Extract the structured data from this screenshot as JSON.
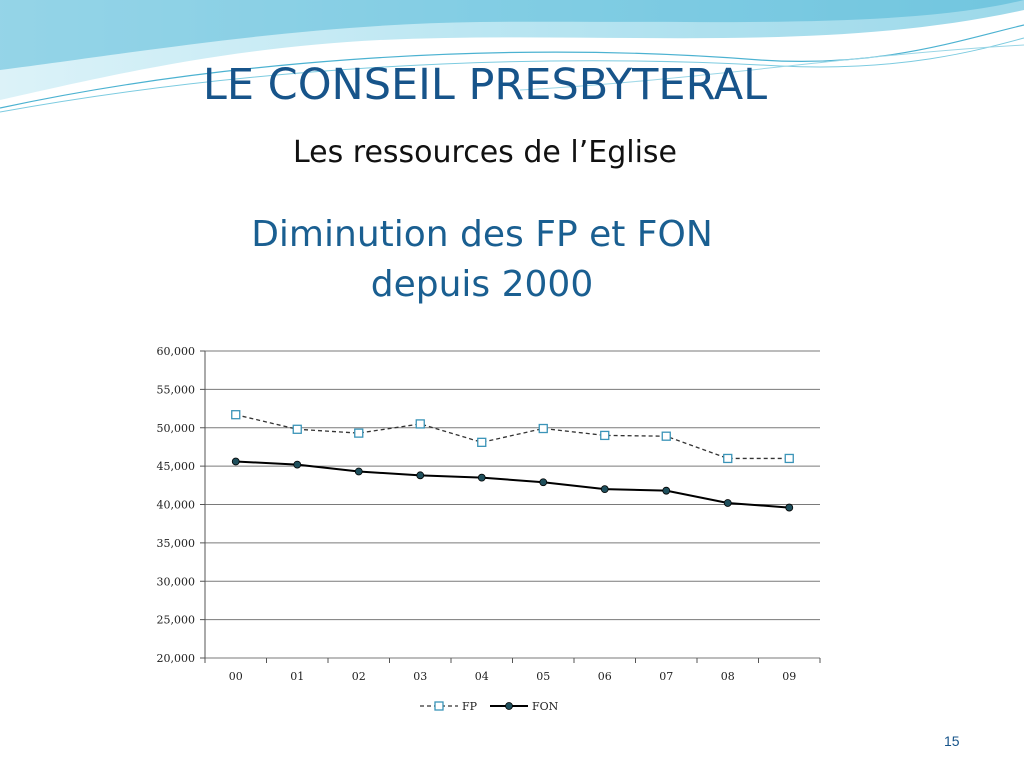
{
  "slide": {
    "title": "LE CONSEIL PRESBYTERAL",
    "subtitle": "Les ressources de l’Eglise",
    "heading_line1": "Diminution des FP et FON",
    "heading_line2": "depuis 2000",
    "page_number": "15"
  },
  "colors": {
    "title": "#17548a",
    "heading": "#1a5f91",
    "fp_marker": "#3a94b8",
    "fon_marker": "#1f4f5c",
    "wave": "#5fc3dc"
  },
  "chart_data": {
    "type": "line",
    "categories": [
      "00",
      "01",
      "02",
      "03",
      "04",
      "05",
      "06",
      "07",
      "08",
      "09"
    ],
    "y_ticks": [
      "20,000",
      "25,000",
      "30,000",
      "35,000",
      "40,000",
      "45,000",
      "50,000",
      "55,000",
      "60,000"
    ],
    "ylim": [
      20000,
      60000
    ],
    "grid": true,
    "legend": "bottom",
    "series": [
      {
        "name": "FP",
        "style": "dashed",
        "marker": "square-open",
        "values": [
          51700,
          49800,
          49300,
          50500,
          48100,
          49900,
          49000,
          48900,
          46000,
          46000
        ]
      },
      {
        "name": "FON",
        "style": "solid",
        "marker": "circle-filled",
        "values": [
          45600,
          45200,
          44300,
          43800,
          43500,
          42900,
          42000,
          41800,
          40200,
          39600
        ]
      }
    ]
  }
}
